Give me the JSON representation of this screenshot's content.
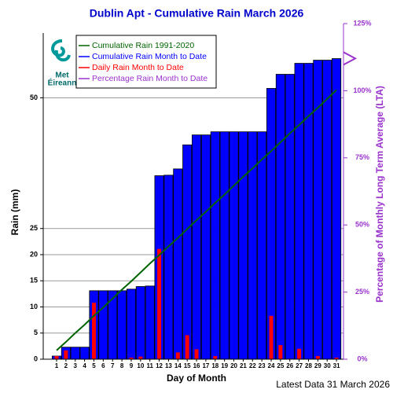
{
  "chart_data": {
    "type": "bar",
    "title": "Dublin Apt - Cumulative Rain March   2026",
    "x_label": "Day of Month",
    "y_label": "Rain (mm)",
    "y2_label": "Percentage  of Monthly Long Term Average (LTA)",
    "footer": "Latest Data 31 March 2026",
    "logo": [
      "Met",
      "Éireann"
    ],
    "categories": [
      "1",
      "2",
      "3",
      "4",
      "5",
      "6",
      "7",
      "8",
      "9",
      "10",
      "11",
      "12",
      "13",
      "14",
      "15",
      "16",
      "17",
      "18",
      "19",
      "20",
      "21",
      "22",
      "23",
      "24",
      "25",
      "26",
      "27",
      "28",
      "29",
      "30",
      "31"
    ],
    "series": [
      {
        "name": "Cumulative Rain 1991-2020",
        "type": "line",
        "color": "#006400",
        "values": [
          1.7,
          3.3,
          5.0,
          6.6,
          8.3,
          9.9,
          11.6,
          13.3,
          14.9,
          16.6,
          18.3,
          19.9,
          21.6,
          23.2,
          24.9,
          26.6,
          28.2,
          29.9,
          31.5,
          33.2,
          34.9,
          36.5,
          38.2,
          39.8,
          41.5,
          43.2,
          44.8,
          46.5,
          48.1,
          49.8,
          51.5
        ]
      },
      {
        "name": "Cumulative Rain Month to Date",
        "type": "bar",
        "color": "#0000ff",
        "values": [
          0.6,
          2.3,
          2.3,
          2.3,
          13.1,
          13.1,
          13.1,
          13.1,
          13.4,
          13.9,
          14.0,
          35.1,
          35.2,
          36.4,
          41.0,
          42.9,
          42.9,
          43.5,
          43.5,
          43.5,
          43.5,
          43.5,
          43.5,
          51.8,
          54.5,
          54.5,
          56.6,
          56.6,
          57.2,
          57.2,
          57.5
        ]
      },
      {
        "name": "Daily Rain Month to Date",
        "type": "bar",
        "color": "#ff0000",
        "values": [
          0.6,
          1.7,
          0,
          0,
          10.8,
          0,
          0,
          0,
          0.3,
          0.5,
          0.1,
          21.1,
          0.1,
          1.3,
          4.6,
          1.9,
          0,
          0.6,
          0,
          0,
          0,
          0,
          0,
          8.3,
          2.7,
          0.1,
          2.0,
          0,
          0.6,
          0,
          0.3
        ]
      },
      {
        "name": "Percentage Rain Month to Date",
        "type": "marker",
        "color": "#9933cc",
        "axis": "y2",
        "values": [
          null,
          null,
          null,
          null,
          null,
          null,
          null,
          null,
          null,
          null,
          null,
          null,
          null,
          null,
          null,
          null,
          null,
          null,
          null,
          null,
          null,
          null,
          null,
          null,
          null,
          null,
          null,
          null,
          null,
          null,
          112
        ]
      }
    ],
    "ylim": [
      0,
      64.2
    ],
    "yticks": [
      0,
      5,
      10,
      15,
      20,
      25,
      50
    ],
    "y2lim": [
      0,
      125
    ],
    "y2ticks": [
      {
        "value": 0,
        "label": "0%"
      },
      {
        "value": 25,
        "label": "25%"
      },
      {
        "value": 50,
        "label": "50%"
      },
      {
        "value": 75,
        "label": "75%"
      },
      {
        "value": 100,
        "label": "100%"
      },
      {
        "value": 125,
        "label": "125%"
      }
    ],
    "grid": true
  }
}
